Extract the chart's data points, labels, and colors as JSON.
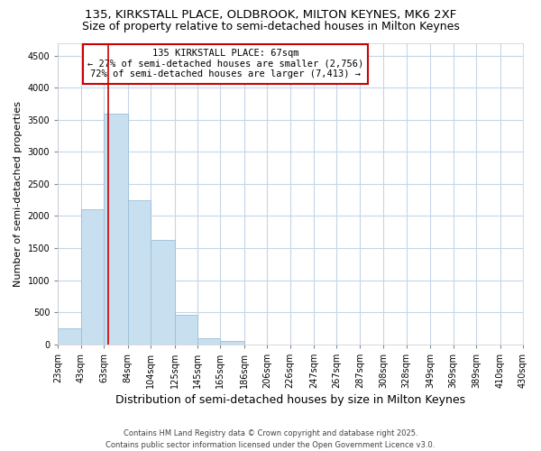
{
  "title1": "135, KIRKSTALL PLACE, OLDBROOK, MILTON KEYNES, MK6 2XF",
  "title2": "Size of property relative to semi-detached houses in Milton Keynes",
  "xlabel": "Distribution of semi-detached houses by size in Milton Keynes",
  "ylabel": "Number of semi-detached properties",
  "annotation_title": "135 KIRKSTALL PLACE: 67sqm",
  "annotation_line1": "← 27% of semi-detached houses are smaller (2,756)",
  "annotation_line2": "72% of semi-detached houses are larger (7,413) →",
  "footer1": "Contains HM Land Registry data © Crown copyright and database right 2025.",
  "footer2": "Contains public sector information licensed under the Open Government Licence v3.0.",
  "property_size": 67,
  "bin_edges": [
    23,
    43,
    63,
    84,
    104,
    125,
    145,
    165,
    186,
    206,
    226,
    247,
    267,
    287,
    308,
    328,
    349,
    369,
    389,
    410,
    430
  ],
  "bar_heights": [
    250,
    2100,
    3600,
    2250,
    1625,
    460,
    100,
    50,
    0,
    0,
    0,
    0,
    0,
    0,
    0,
    0,
    0,
    0,
    0,
    0
  ],
  "bar_color": "#c8dff0",
  "bar_edgecolor": "#9bbfd8",
  "redline_color": "#cc0000",
  "annotation_box_facecolor": "#ffffff",
  "annotation_box_edgecolor": "#cc0000",
  "background_color": "#ffffff",
  "grid_color": "#c5d5e8",
  "ylim": [
    0,
    4700
  ],
  "yticks": [
    0,
    500,
    1000,
    1500,
    2000,
    2500,
    3000,
    3500,
    4000,
    4500
  ],
  "title1_fontsize": 9.5,
  "title2_fontsize": 9,
  "xlabel_fontsize": 9,
  "ylabel_fontsize": 8,
  "tick_fontsize": 7,
  "annotation_fontsize": 7.5,
  "footer_fontsize": 6
}
